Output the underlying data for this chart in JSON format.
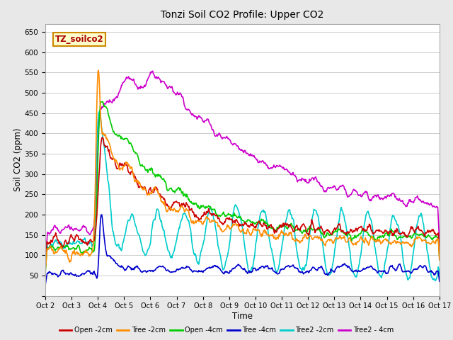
{
  "title": "Tonzi Soil CO2 Profile: Upper CO2",
  "xlabel": "Time",
  "ylabel": "Soil CO2 (ppm)",
  "watermark": "TZ_soilco2",
  "ylim": [
    0,
    670
  ],
  "yticks": [
    0,
    50,
    100,
    150,
    200,
    250,
    300,
    350,
    400,
    450,
    500,
    550,
    600,
    650
  ],
  "xtick_labels": [
    "Oct 2",
    "Oct 3",
    "Oct 4",
    "Oct 5",
    "Oct 6",
    "Oct 7",
    "Oct 8",
    "Oct 9",
    "Oct 10",
    "Oct 11",
    "Oct 12",
    "Oct 13",
    "Oct 14",
    "Oct 15",
    "Oct 16",
    "Oct 17"
  ],
  "series": {
    "Open -2cm": {
      "color": "#cc0000",
      "lw": 1.2
    },
    "Tree -2cm": {
      "color": "#ff8c00",
      "lw": 1.2
    },
    "Open -4cm": {
      "color": "#00cc00",
      "lw": 1.2
    },
    "Tree -4cm": {
      "color": "#0000cc",
      "lw": 1.2
    },
    "Tree2 -2cm": {
      "color": "#00cccc",
      "lw": 1.2
    },
    "Tree2 - 4cm": {
      "color": "#cc00cc",
      "lw": 1.2
    }
  },
  "bg_color": "#e8e8e8",
  "plot_bg": "#ffffff",
  "grid_color": "#cccccc"
}
